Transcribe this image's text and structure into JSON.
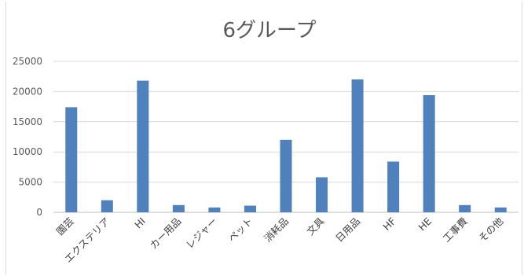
{
  "chart_data": {
    "type": "bar",
    "title": "6グループ",
    "xlabel": "",
    "ylabel": "",
    "ylim": [
      0,
      25000
    ],
    "yticks": [
      0,
      5000,
      10000,
      15000,
      20000,
      25000
    ],
    "grid": true,
    "legend": "none",
    "bar_color": "#4f81bd",
    "categories": [
      "園芸",
      "エクステリア",
      "HI",
      "カー用品",
      "レジャー",
      "ペット",
      "消耗品",
      "文具",
      "日用品",
      "HF",
      "HE",
      "工事費",
      "その他"
    ],
    "values": [
      17400,
      2000,
      21800,
      1200,
      800,
      1100,
      12000,
      5800,
      22000,
      8400,
      19400,
      1200,
      800
    ]
  }
}
